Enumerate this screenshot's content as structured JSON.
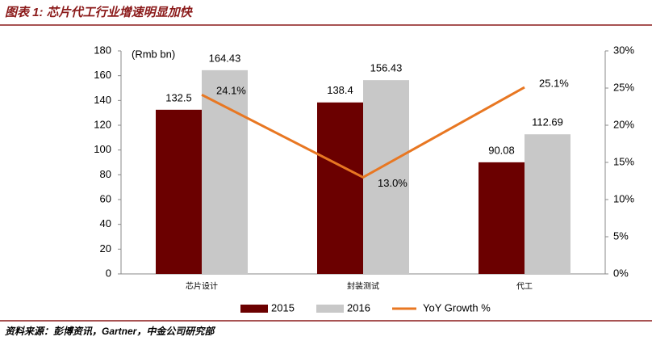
{
  "chart_data": {
    "type": "bar_line",
    "title": "图表 1: 芯片代工行业增速明显加快",
    "unit_label": "(Rmb bn)",
    "source": "资料来源：彭博资讯，Gartner，中金公司研究部",
    "categories": [
      "芯片设计",
      "封装测试",
      "代工"
    ],
    "series": [
      {
        "name": "2015",
        "type": "bar",
        "color": "#6b0000",
        "values": [
          132.5,
          138.4,
          90.08
        ]
      },
      {
        "name": "2016",
        "type": "bar",
        "color": "#c8c8c8",
        "values": [
          164.43,
          156.43,
          112.69
        ]
      },
      {
        "name": "YoY Growth %",
        "type": "line",
        "axis": "y2",
        "color": "#e87722",
        "values": [
          24.1,
          13.0,
          25.1
        ],
        "value_labels": [
          "24.1%",
          "13.0%",
          "25.1%"
        ]
      }
    ],
    "ylim": [
      0,
      180
    ],
    "yticks": [
      0,
      20,
      40,
      60,
      80,
      100,
      120,
      140,
      160,
      180
    ],
    "y2lim": [
      0,
      30
    ],
    "y2ticks": [
      {
        "value": 0,
        "label": "0%"
      },
      {
        "value": 5,
        "label": "5%"
      },
      {
        "value": 10,
        "label": "10%"
      },
      {
        "value": 15,
        "label": "15%"
      },
      {
        "value": 20,
        "label": "20%"
      },
      {
        "value": 25,
        "label": "25%"
      },
      {
        "value": 30,
        "label": "30%"
      }
    ],
    "legend": "bottom"
  }
}
